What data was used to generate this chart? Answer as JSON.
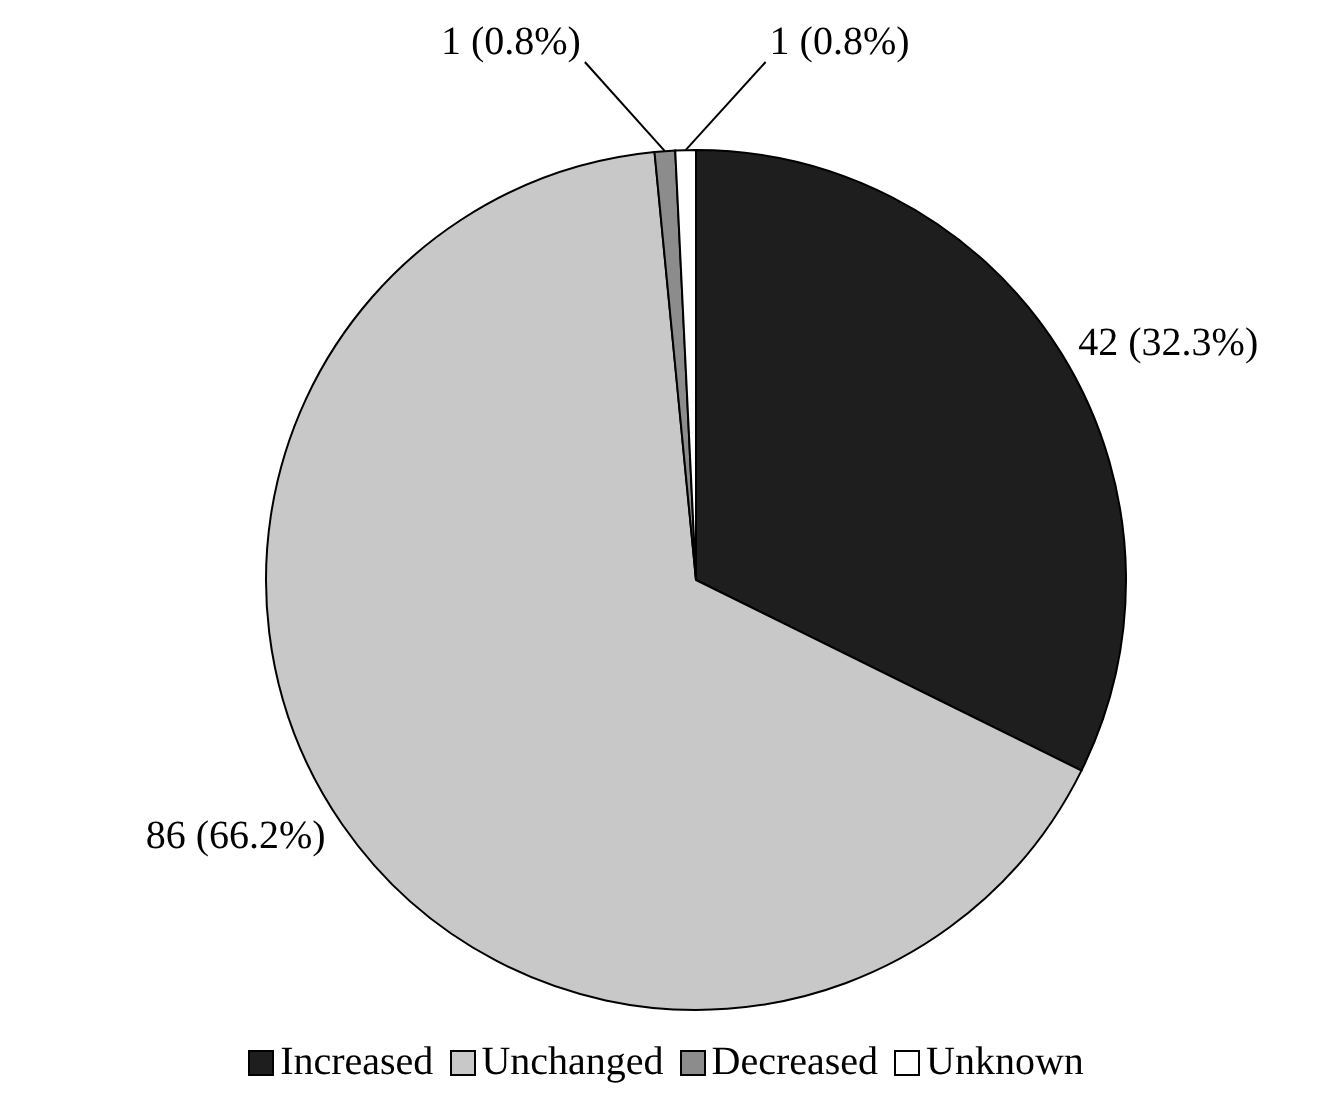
{
  "chart_data": {
    "type": "pie",
    "categories": [
      "Increased",
      "Unchanged",
      "Decreased",
      "Unknown"
    ],
    "values": [
      42,
      86,
      1,
      1
    ],
    "colors": [
      "#1e1e1e",
      "#c8c8c8",
      "#8c8c8c",
      "#ffffff"
    ],
    "value_labels": [
      "42 (32.3%)",
      "86 (66.2%)",
      "1 (0.8%)",
      "1 (0.8%)"
    ],
    "legend": "bottom"
  }
}
